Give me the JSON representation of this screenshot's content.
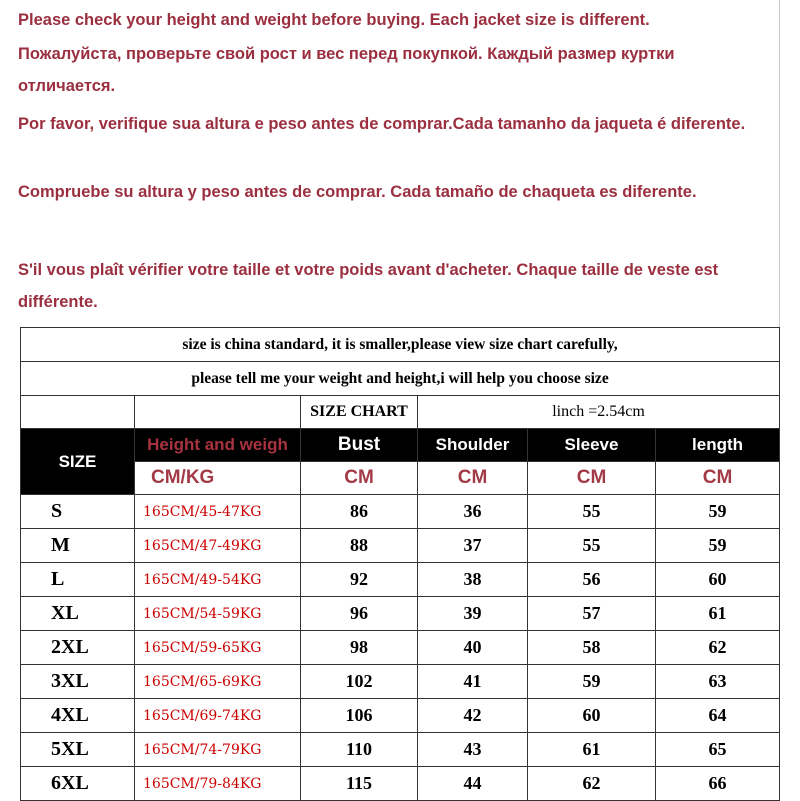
{
  "notices": [
    "Please check your height and weight before buying. Each jacket size is different.",
    "Пожалуйста, проверьте свой рост и вес перед покупкой. Каждый размер куртки отличается.",
    "Por favor, verifique sua altura e peso antes de comprar.Cada tamanho da jaqueta é diferente.",
    "Compruebe su altura y peso antes de comprar. Cada tamaño de chaqueta es diferente.",
    "S'il vous plaît vérifier votre taille et votre poids avant d'acheter. Chaque taille de veste est différente."
  ],
  "table": {
    "note1": "size is china standard, it is smaller,please view size chart carefully,",
    "note2": "please tell me your weight and height,i will help you choose size",
    "size_chart": "SIZE CHART",
    "inch": "linch =2.54cm",
    "headers": {
      "size": "SIZE",
      "hw": "Height and weigh",
      "bust": "Bust",
      "shoulder": "Shoulder",
      "sleeve": "Sleeve",
      "length": "length"
    },
    "units": {
      "hw": "CM/KG",
      "bust": "CM",
      "shoulder": "CM",
      "sleeve": "CM",
      "length": "CM"
    },
    "rows": [
      {
        "size": "S",
        "hw": "165CM/45-47KG",
        "bust": "86",
        "shoulder": "36",
        "sleeve": "55",
        "length": "59"
      },
      {
        "size": "M",
        "hw": "165CM/47-49KG",
        "bust": "88",
        "shoulder": "37",
        "sleeve": "55",
        "length": "59"
      },
      {
        "size": "L",
        "hw": "165CM/49-54KG",
        "bust": "92",
        "shoulder": "38",
        "sleeve": "56",
        "length": "60"
      },
      {
        "size": "XL",
        "hw": "165CM/54-59KG",
        "bust": "96",
        "shoulder": "39",
        "sleeve": "57",
        "length": "61"
      },
      {
        "size": "2XL",
        "hw": "165CM/59-65KG",
        "bust": "98",
        "shoulder": "40",
        "sleeve": "58",
        "length": "62"
      },
      {
        "size": "3XL",
        "hw": "165CM/65-69KG",
        "bust": "102",
        "shoulder": "41",
        "sleeve": "59",
        "length": "63"
      },
      {
        "size": "4XL",
        "hw": "165CM/69-74KG",
        "bust": "106",
        "shoulder": "42",
        "sleeve": "60",
        "length": "64"
      },
      {
        "size": "5XL",
        "hw": "165CM/74-79KG",
        "bust": "110",
        "shoulder": "43",
        "sleeve": "61",
        "length": "65"
      },
      {
        "size": "6XL",
        "hw": "165CM/79-84KG",
        "bust": "115",
        "shoulder": "44",
        "sleeve": "62",
        "length": "66"
      }
    ]
  }
}
